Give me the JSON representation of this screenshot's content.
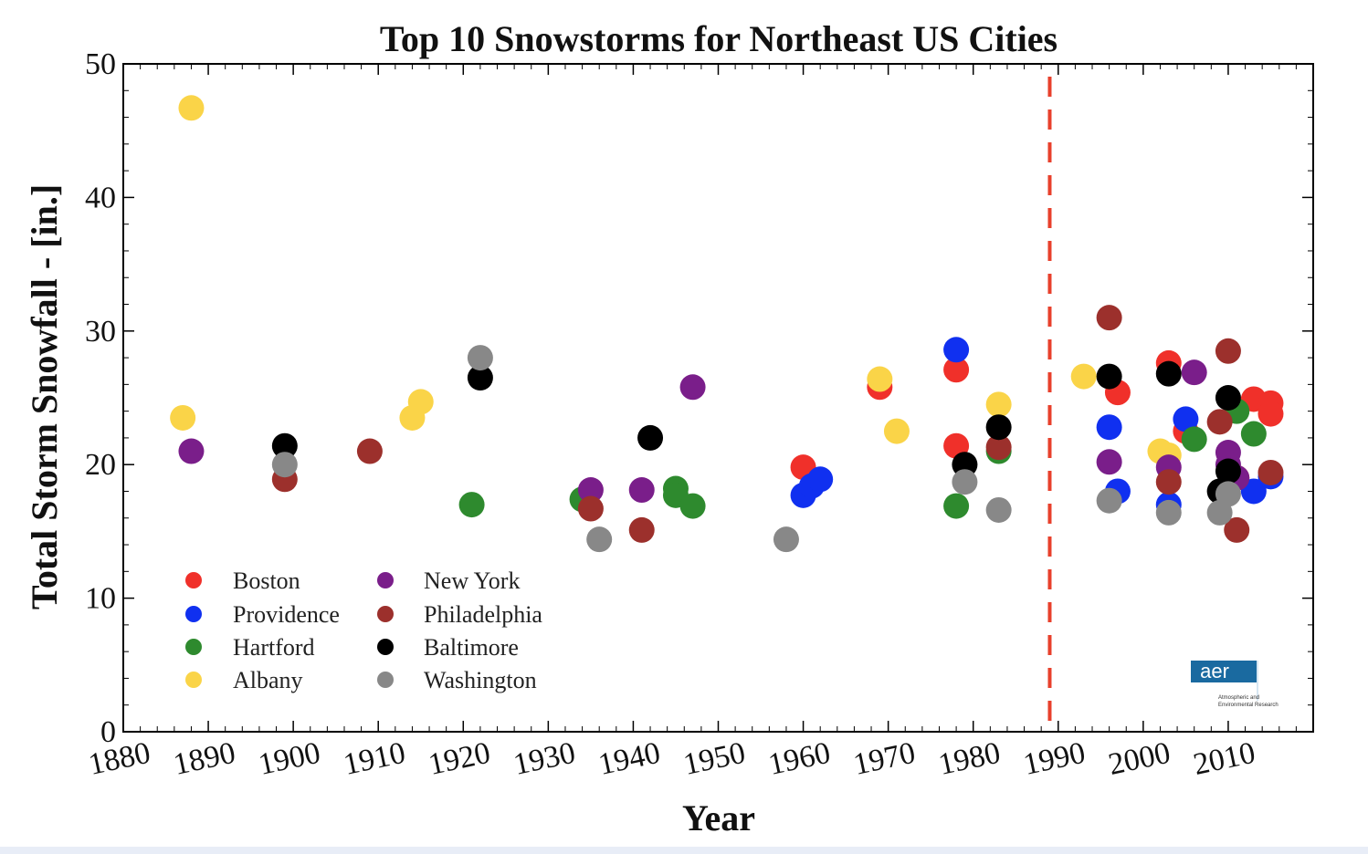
{
  "chart_data": {
    "type": "scatter",
    "title": "Top 10 Snowstorms for Northeast US Cities",
    "xlabel": "Year",
    "ylabel": "Total Storm Snowfall - [in.]",
    "xlim": [
      1880,
      2020
    ],
    "ylim": [
      0,
      50
    ],
    "xticks": [
      1880,
      1890,
      1900,
      1910,
      1920,
      1930,
      1940,
      1950,
      1960,
      1970,
      1980,
      1990,
      2000,
      2010
    ],
    "yticks": [
      0,
      10,
      20,
      30,
      40,
      50
    ],
    "reference_line": {
      "x": 1989,
      "style": "dashed",
      "color": "#e8402c"
    },
    "legend_position": "lower-left",
    "series": [
      {
        "name": "Boston",
        "color": "#f0302a",
        "points": [
          [
            1960,
            19.8
          ],
          [
            1969,
            25.8
          ],
          [
            1978,
            27.1
          ],
          [
            1978,
            21.4
          ],
          [
            1997,
            25.4
          ],
          [
            2003,
            27.6
          ],
          [
            2005,
            22.5
          ],
          [
            2013,
            24.9
          ],
          [
            2015,
            24.6
          ],
          [
            2015,
            23.8
          ],
          [
            2011,
            19.0
          ]
        ]
      },
      {
        "name": "Providence",
        "color": "#1030f0",
        "points": [
          [
            1960,
            17.7
          ],
          [
            1961,
            18.4
          ],
          [
            1962,
            18.9
          ],
          [
            1978,
            28.6
          ],
          [
            1996,
            22.8
          ],
          [
            1997,
            18.0
          ],
          [
            2003,
            17.0
          ],
          [
            2005,
            23.4
          ],
          [
            2013,
            18.0
          ],
          [
            2015,
            19.1
          ]
        ]
      },
      {
        "name": "Hartford",
        "color": "#2e8a2e",
        "points": [
          [
            1921,
            17.0
          ],
          [
            1934,
            17.4
          ],
          [
            1945,
            18.2
          ],
          [
            1945,
            17.7
          ],
          [
            1947,
            16.9
          ],
          [
            1978,
            16.9
          ],
          [
            1983,
            21.0
          ],
          [
            2006,
            21.9
          ],
          [
            2011,
            24.0
          ],
          [
            2013,
            22.3
          ]
        ]
      },
      {
        "name": "Albany",
        "color": "#fad448",
        "points": [
          [
            1888,
            46.7
          ],
          [
            1887,
            23.5
          ],
          [
            1914,
            23.5
          ],
          [
            1915,
            24.7
          ],
          [
            1969,
            26.4
          ],
          [
            1971,
            22.5
          ],
          [
            1983,
            24.5
          ],
          [
            1993,
            26.6
          ],
          [
            2002,
            21.0
          ],
          [
            2003,
            20.7
          ]
        ]
      },
      {
        "name": "New York",
        "color": "#7a1e8a",
        "points": [
          [
            1888,
            21.0
          ],
          [
            1935,
            18.1
          ],
          [
            1941,
            18.1
          ],
          [
            1947,
            25.8
          ],
          [
            1996,
            20.2
          ],
          [
            2003,
            19.8
          ],
          [
            2006,
            26.9
          ],
          [
            2010,
            20.9
          ],
          [
            2010,
            20.0
          ],
          [
            2011,
            19.0
          ]
        ]
      },
      {
        "name": "Philadelphia",
        "color": "#9c302c",
        "points": [
          [
            1899,
            18.9
          ],
          [
            1909,
            21.0
          ],
          [
            1935,
            16.7
          ],
          [
            1941,
            15.1
          ],
          [
            1983,
            21.3
          ],
          [
            1996,
            31.0
          ],
          [
            2003,
            18.7
          ],
          [
            2009,
            23.2
          ],
          [
            2010,
            28.5
          ],
          [
            2011,
            15.1
          ],
          [
            2015,
            19.4
          ]
        ]
      },
      {
        "name": "Baltimore",
        "color": "#000000",
        "points": [
          [
            1899,
            21.4
          ],
          [
            1922,
            26.5
          ],
          [
            1942,
            22.0
          ],
          [
            1979,
            20.0
          ],
          [
            1983,
            22.8
          ],
          [
            1996,
            26.6
          ],
          [
            2003,
            26.8
          ],
          [
            2009,
            18.0
          ],
          [
            2010,
            25.0
          ],
          [
            2010,
            19.5
          ]
        ]
      },
      {
        "name": "Washington",
        "color": "#888888",
        "points": [
          [
            1899,
            20.0
          ],
          [
            1922,
            28.0
          ],
          [
            1936,
            14.4
          ],
          [
            1958,
            14.4
          ],
          [
            1979,
            18.7
          ],
          [
            1983,
            16.6
          ],
          [
            1996,
            17.3
          ],
          [
            2003,
            16.4
          ],
          [
            2009,
            16.4
          ],
          [
            2010,
            17.8
          ]
        ]
      }
    ]
  },
  "logo": {
    "brand": "aer",
    "line1": "Atmospheric and",
    "line2": "Environmental Research",
    "bg": "#1a6aa0"
  }
}
